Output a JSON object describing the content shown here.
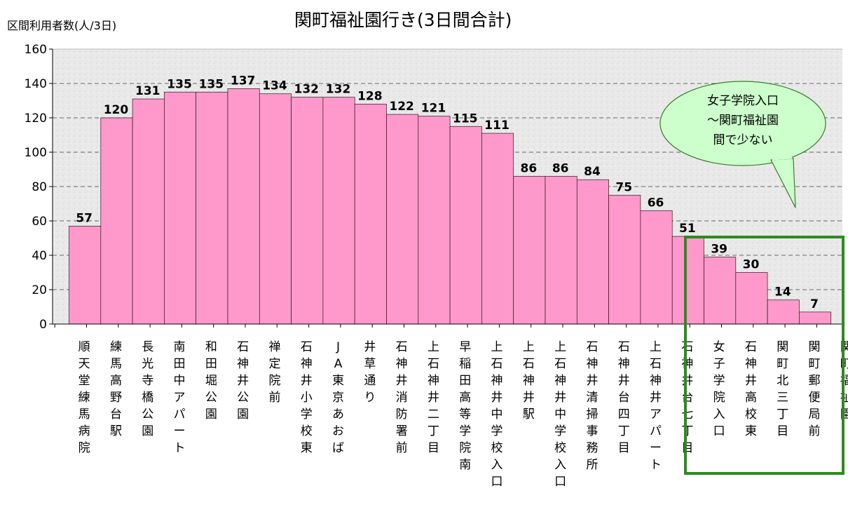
{
  "chart_data": {
    "type": "bar",
    "title": "関町福祉園行き(3日間合計)",
    "ylabel": "区間利用者数(人/3日)",
    "ylim": [
      0,
      160
    ],
    "yticks": [
      0,
      20,
      40,
      60,
      80,
      100,
      120,
      140,
      160
    ],
    "grid": true,
    "categories": [
      "順天堂練馬病院",
      "練馬高野台駅",
      "長光寺橋公園",
      "南田中アパート",
      "和田堀公園",
      "石神井公園",
      "禅定院前",
      "石神井小学校東",
      "JA東京あおば",
      "井草通り",
      "石神井消防署前",
      "上石神井二丁目",
      "早稲田高等学院南",
      "上石神井中学校入口",
      "上石神井駅",
      "上石神井中学校入口",
      "石神井清掃事務所",
      "石神井台四丁目",
      "上石神井アパート",
      "石神井台七丁目",
      "女子学院入口",
      "石神井高校東",
      "関町北三丁目",
      "関町郵便局前",
      "関町福祉園"
    ],
    "values": [
      57,
      120,
      131,
      135,
      135,
      137,
      134,
      132,
      132,
      128,
      122,
      121,
      115,
      111,
      86,
      86,
      84,
      75,
      66,
      51,
      39,
      30,
      14,
      7,
      null
    ],
    "annotation": "女子学院入口\n〜関町福祉園\n間で少ない",
    "colors": {
      "bar": "#ff99cc",
      "highlight_box": "#2e8b1f",
      "callout_fill": "#ccffcc",
      "callout_stroke": "#3a7a2a"
    }
  }
}
